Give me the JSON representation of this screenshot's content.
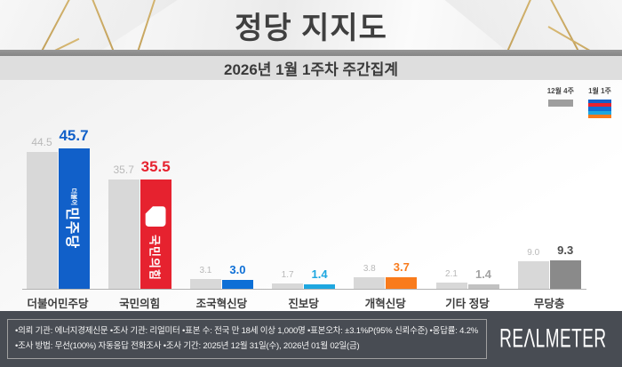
{
  "header": {
    "title": "정당 지지도"
  },
  "subtitle": "2026년 1월 1주차 주간집계",
  "legend": {
    "prev_label": "12월 4주",
    "curr_label": "1월 1주",
    "prev_color": "#9e9e9e",
    "curr_colors": [
      "#1160c9",
      "#e6222f",
      "#0d6fd6",
      "#1ea7e0",
      "#f97b1c"
    ]
  },
  "chart_data": {
    "type": "bar",
    "title": "정당 지지도",
    "subtitle": "2026년 1월 1주차 주간집계",
    "unit": "%",
    "ylim": [
      0,
      50
    ],
    "grid": false,
    "legend_position": "top-right",
    "categories": [
      "더불어민주당",
      "국민의힘",
      "조국혁신당",
      "진보당",
      "개혁신당",
      "기타 정당",
      "무당층"
    ],
    "series": [
      {
        "name": "12월 4주",
        "values": [
          44.5,
          35.7,
          3.1,
          1.7,
          3.8,
          2.1,
          9.0
        ]
      },
      {
        "name": "1월 1주",
        "values": [
          45.7,
          35.5,
          3.0,
          1.4,
          3.7,
          1.4,
          9.3
        ]
      }
    ],
    "bar_color_previous": "#d8d8d8",
    "bar_colors_current": [
      "#1160c9",
      "#e6222f",
      "#0d6fd6",
      "#1ea7e0",
      "#f97b1c",
      "#c2c2c2",
      "#8a8a8a"
    ],
    "value_label_colors_current": [
      "#1160c9",
      "#e6222f",
      "#0d6fd6",
      "#1ea7e0",
      "#f97b1c",
      "#a3a3a3",
      "#4d4d4d"
    ]
  },
  "bar_logos": {
    "minjoo_small": "더불어",
    "minjoo_big": "민주당",
    "ppp_text": "국민의힘"
  },
  "footer": {
    "line1": "•의뢰 기관: 에너지경제신문  •조사 기관: 리얼미터 •표본 수: 전국 만 18세 이상 1,000명 •표본오차: ±3.1%P(95% 신뢰수준) •응답률: 4.2%",
    "line2": "•조사 방법: 무선(100%) 자동응답 전화조사 •조사 기간: 2025년 12월 31일(수), 2026년 01월 02일(금)",
    "logo": "REΛLMETER"
  }
}
